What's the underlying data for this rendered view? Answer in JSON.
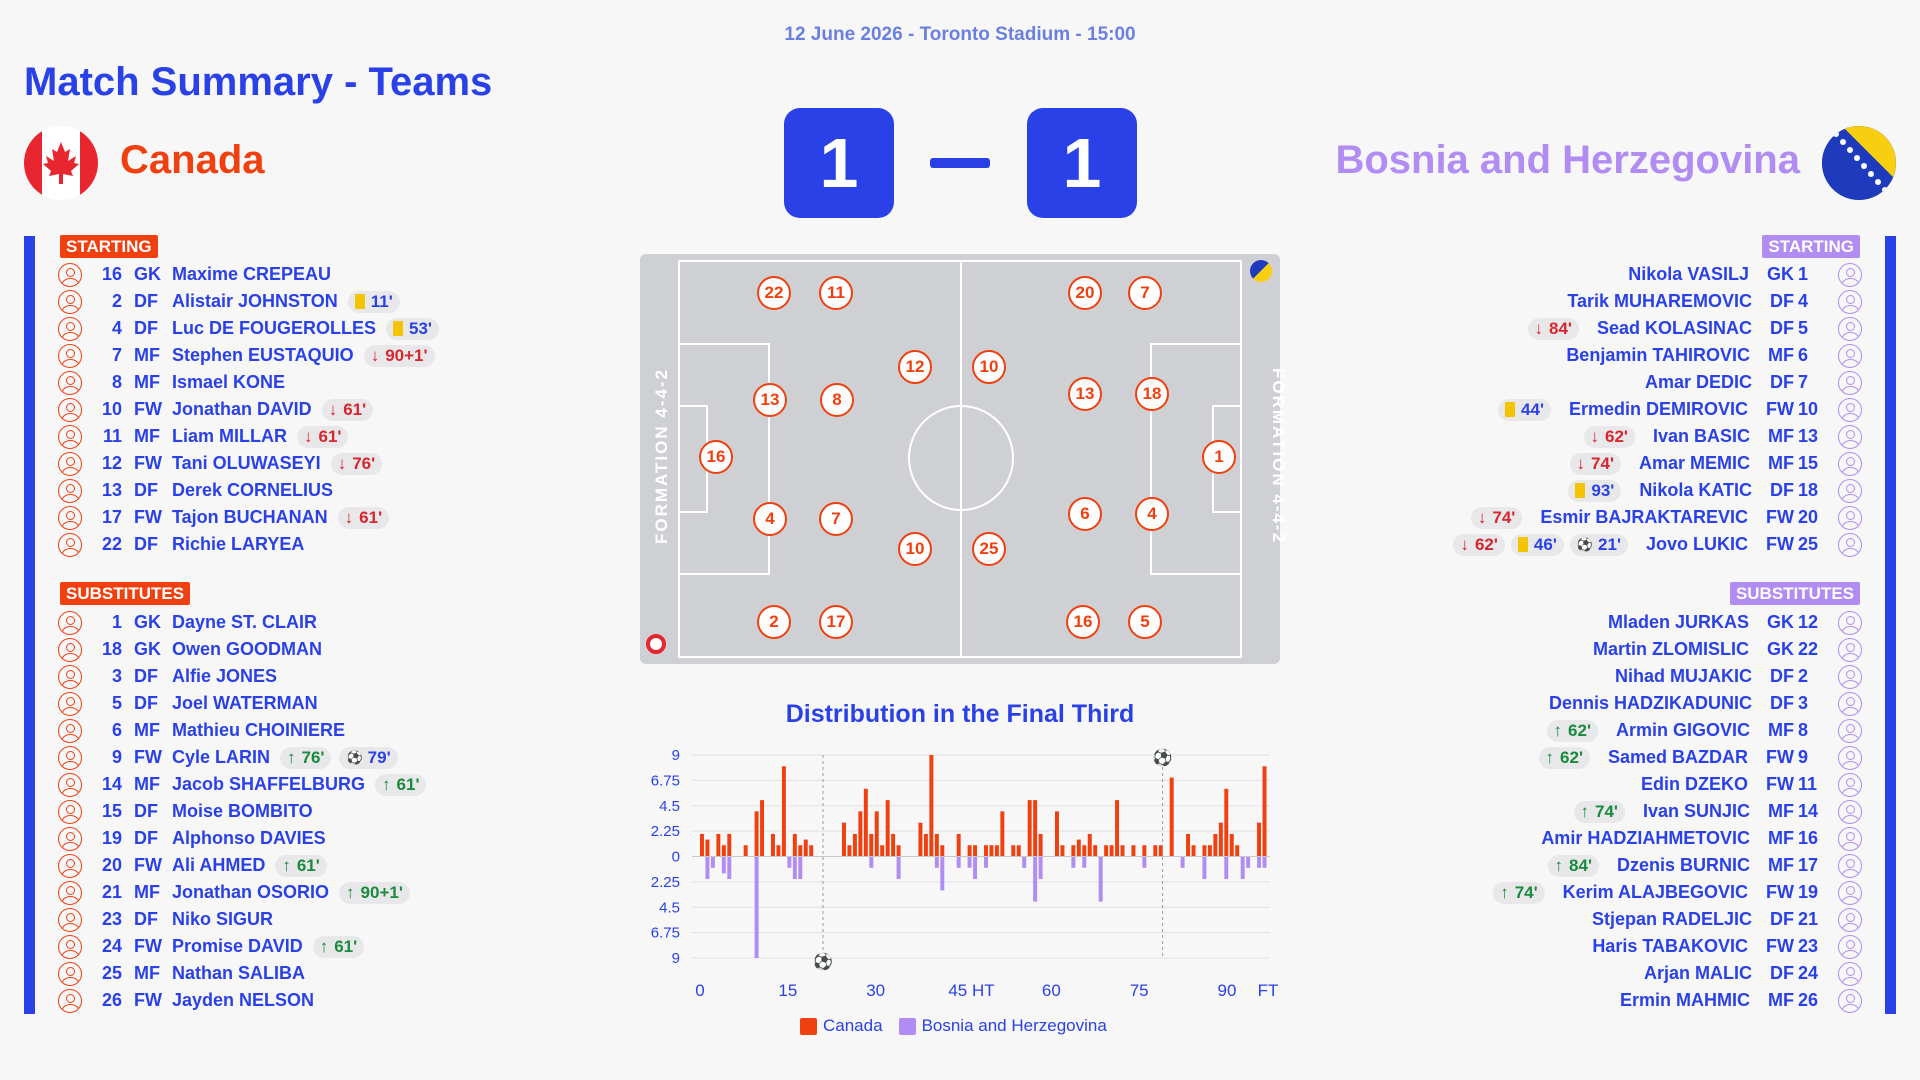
{
  "header": {
    "meta": "12 June 2026 - Toronto Stadium - 15:00",
    "title": "Match Summary - Teams"
  },
  "colors": {
    "home": "#f0400f",
    "away": "#b18cf2",
    "accent": "#2a41e8"
  },
  "home": {
    "name": "Canada",
    "flag_icon": "canada-flag-icon",
    "score": "1",
    "starting_label": "STARTING",
    "subs_label": "SUBSTITUTES",
    "formation": "FORMATION 4-4-2",
    "starting": [
      {
        "num": "16",
        "pos": "GK",
        "name": "Maxime CREPEAU",
        "events": []
      },
      {
        "num": "2",
        "pos": "DF",
        "name": "Alistair JOHNSTON",
        "events": [
          {
            "type": "yellow",
            "t": "11'"
          }
        ]
      },
      {
        "num": "4",
        "pos": "DF",
        "name": "Luc DE FOUGEROLLES",
        "events": [
          {
            "type": "yellow",
            "t": "53'"
          }
        ]
      },
      {
        "num": "7",
        "pos": "MF",
        "name": "Stephen EUSTAQUIO",
        "events": [
          {
            "type": "out",
            "t": "90+1'"
          }
        ]
      },
      {
        "num": "8",
        "pos": "MF",
        "name": "Ismael KONE",
        "events": []
      },
      {
        "num": "10",
        "pos": "FW",
        "name": "Jonathan DAVID",
        "events": [
          {
            "type": "out",
            "t": "61'"
          }
        ]
      },
      {
        "num": "11",
        "pos": "MF",
        "name": "Liam MILLAR",
        "events": [
          {
            "type": "out",
            "t": "61'"
          }
        ]
      },
      {
        "num": "12",
        "pos": "FW",
        "name": "Tani OLUWASEYI",
        "events": [
          {
            "type": "out",
            "t": "76'"
          }
        ]
      },
      {
        "num": "13",
        "pos": "DF",
        "name": "Derek CORNELIUS",
        "events": []
      },
      {
        "num": "17",
        "pos": "FW",
        "name": "Tajon BUCHANAN",
        "events": [
          {
            "type": "out",
            "t": "61'"
          }
        ]
      },
      {
        "num": "22",
        "pos": "DF",
        "name": "Richie LARYEA",
        "events": []
      }
    ],
    "subs": [
      {
        "num": "1",
        "pos": "GK",
        "name": "Dayne ST. CLAIR",
        "events": []
      },
      {
        "num": "18",
        "pos": "GK",
        "name": "Owen GOODMAN",
        "events": []
      },
      {
        "num": "3",
        "pos": "DF",
        "name": "Alfie JONES",
        "events": []
      },
      {
        "num": "5",
        "pos": "DF",
        "name": "Joel WATERMAN",
        "events": []
      },
      {
        "num": "6",
        "pos": "MF",
        "name": "Mathieu CHOINIERE",
        "events": []
      },
      {
        "num": "9",
        "pos": "FW",
        "name": "Cyle LARIN",
        "events": [
          {
            "type": "in",
            "t": "76'"
          },
          {
            "type": "goal",
            "t": "79'"
          }
        ]
      },
      {
        "num": "14",
        "pos": "MF",
        "name": "Jacob SHAFFELBURG",
        "events": [
          {
            "type": "in",
            "t": "61'"
          }
        ]
      },
      {
        "num": "15",
        "pos": "DF",
        "name": "Moise BOMBITO",
        "events": []
      },
      {
        "num": "19",
        "pos": "DF",
        "name": "Alphonso DAVIES",
        "events": []
      },
      {
        "num": "20",
        "pos": "FW",
        "name": "Ali AHMED",
        "events": [
          {
            "type": "in",
            "t": "61'"
          }
        ]
      },
      {
        "num": "21",
        "pos": "MF",
        "name": "Jonathan OSORIO",
        "events": [
          {
            "type": "in",
            "t": "90+1'"
          }
        ]
      },
      {
        "num": "23",
        "pos": "DF",
        "name": "Niko SIGUR",
        "events": []
      },
      {
        "num": "24",
        "pos": "FW",
        "name": "Promise DAVID",
        "events": [
          {
            "type": "in",
            "t": "61'"
          }
        ]
      },
      {
        "num": "25",
        "pos": "MF",
        "name": "Nathan SALIBA",
        "events": []
      },
      {
        "num": "26",
        "pos": "FW",
        "name": "Jayden NELSON",
        "events": []
      }
    ],
    "pitch": [
      "22",
      "11",
      "13",
      "8",
      "16",
      "4",
      "7",
      "2",
      "17",
      "12",
      "10"
    ]
  },
  "away": {
    "name": "Bosnia and Herzegovina",
    "flag_icon": "bosnia-flag-icon",
    "score": "1",
    "starting_label": "STARTING",
    "subs_label": "SUBSTITUTES",
    "formation": "FORMATION 4-4-2",
    "starting": [
      {
        "num": "1",
        "pos": "GK",
        "name": "Nikola VASILJ",
        "events": []
      },
      {
        "num": "4",
        "pos": "DF",
        "name": "Tarik MUHAREMOVIC",
        "events": []
      },
      {
        "num": "5",
        "pos": "DF",
        "name": "Sead KOLASINAC",
        "events": [
          {
            "type": "out",
            "t": "84'"
          }
        ]
      },
      {
        "num": "6",
        "pos": "MF",
        "name": "Benjamin TAHIROVIC",
        "events": []
      },
      {
        "num": "7",
        "pos": "DF",
        "name": "Amar DEDIC",
        "events": []
      },
      {
        "num": "10",
        "pos": "FW",
        "name": "Ermedin DEMIROVIC",
        "events": [
          {
            "type": "yellow",
            "t": "44'"
          }
        ]
      },
      {
        "num": "13",
        "pos": "MF",
        "name": "Ivan BASIC",
        "events": [
          {
            "type": "out",
            "t": "62'"
          }
        ]
      },
      {
        "num": "15",
        "pos": "MF",
        "name": "Amar MEMIC",
        "events": [
          {
            "type": "out",
            "t": "74'"
          }
        ]
      },
      {
        "num": "18",
        "pos": "DF",
        "name": "Nikola KATIC",
        "events": [
          {
            "type": "yellow",
            "t": "93'"
          }
        ]
      },
      {
        "num": "20",
        "pos": "FW",
        "name": "Esmir BAJRAKTAREVIC",
        "events": [
          {
            "type": "out",
            "t": "74'"
          }
        ]
      },
      {
        "num": "25",
        "pos": "FW",
        "name": "Jovo LUKIC",
        "events": [
          {
            "type": "out",
            "t": "62'"
          },
          {
            "type": "yellow",
            "t": "46'"
          },
          {
            "type": "goal",
            "t": "21'"
          }
        ]
      }
    ],
    "subs": [
      {
        "num": "12",
        "pos": "GK",
        "name": "Mladen JURKAS",
        "events": []
      },
      {
        "num": "22",
        "pos": "GK",
        "name": "Martin ZLOMISLIC",
        "events": []
      },
      {
        "num": "2",
        "pos": "DF",
        "name": "Nihad MUJAKIC",
        "events": []
      },
      {
        "num": "3",
        "pos": "DF",
        "name": "Dennis HADZIKADUNIC",
        "events": []
      },
      {
        "num": "8",
        "pos": "MF",
        "name": "Armin GIGOVIC",
        "events": [
          {
            "type": "in",
            "t": "62'"
          }
        ]
      },
      {
        "num": "9",
        "pos": "FW",
        "name": "Samed BAZDAR",
        "events": [
          {
            "type": "in",
            "t": "62'"
          }
        ]
      },
      {
        "num": "11",
        "pos": "FW",
        "name": "Edin DZEKO",
        "events": []
      },
      {
        "num": "14",
        "pos": "MF",
        "name": "Ivan SUNJIC",
        "events": [
          {
            "type": "in",
            "t": "74'"
          }
        ]
      },
      {
        "num": "16",
        "pos": "MF",
        "name": "Amir HADZIAHMETOVIC",
        "events": []
      },
      {
        "num": "17",
        "pos": "MF",
        "name": "Dzenis BURNIC",
        "events": [
          {
            "type": "in",
            "t": "84'"
          }
        ]
      },
      {
        "num": "19",
        "pos": "FW",
        "name": "Kerim ALAJBEGOVIC",
        "events": [
          {
            "type": "in",
            "t": "74'"
          }
        ]
      },
      {
        "num": "21",
        "pos": "DF",
        "name": "Stjepan RADELJIC",
        "events": []
      },
      {
        "num": "23",
        "pos": "FW",
        "name": "Haris TABAKOVIC",
        "events": []
      },
      {
        "num": "24",
        "pos": "DF",
        "name": "Arjan MALIC",
        "events": []
      },
      {
        "num": "26",
        "pos": "MF",
        "name": "Ermin MAHMIC",
        "events": []
      }
    ],
    "pitch": [
      "20",
      "7",
      "13",
      "18",
      "1",
      "6",
      "4",
      "16",
      "5",
      "10",
      "25"
    ]
  },
  "chart_data": {
    "type": "bar",
    "title": "Distribution in the Final Third",
    "x_ticks": [
      "0",
      "15",
      "30",
      "45 HT",
      "60",
      "75",
      "90",
      "FT"
    ],
    "y_ticks": [
      "9",
      "6.75",
      "4.5",
      "2.25",
      "0",
      "2.25",
      "4.5",
      "6.75",
      "9"
    ],
    "ylim": [
      -9,
      9
    ],
    "series": [
      {
        "name": "Canada",
        "color": "#f0400f",
        "values": [
          2,
          1.5,
          0,
          2,
          1,
          2,
          0,
          0,
          1,
          0,
          4,
          5,
          0,
          2,
          1,
          8,
          0,
          2,
          1,
          1.5,
          1,
          0,
          0,
          0,
          0,
          0,
          3,
          1,
          2,
          4,
          6,
          2,
          4,
          1,
          5,
          2,
          1,
          0,
          0,
          0,
          3,
          2,
          9,
          2,
          1,
          0,
          0,
          2,
          0,
          1,
          1,
          0,
          1,
          1,
          1,
          4,
          0,
          1,
          1,
          0,
          5,
          5,
          2,
          0,
          0,
          4,
          1,
          0,
          1,
          1.5,
          1,
          2,
          1,
          0,
          1,
          1,
          5,
          1,
          0,
          1,
          0,
          1,
          0,
          1,
          1,
          0,
          7,
          0,
          0,
          2,
          1,
          0,
          1,
          1,
          2,
          3,
          6,
          2,
          1,
          0,
          0,
          0,
          3,
          8
        ]
      },
      {
        "name": "Bosnia and Herzegovina",
        "color": "#b18cf2",
        "values": [
          0,
          2,
          1,
          0,
          1.5,
          2,
          0,
          0,
          0,
          0,
          9,
          0,
          0,
          0,
          0,
          0,
          1,
          2,
          2,
          0,
          0,
          0,
          0,
          0,
          0,
          0,
          0,
          0,
          0,
          0,
          0,
          1,
          0,
          0,
          0,
          0,
          2,
          0,
          0,
          0,
          0,
          0,
          0,
          1,
          3,
          0,
          0,
          1,
          0,
          1,
          2,
          0,
          1,
          0,
          0,
          0,
          0,
          0,
          0,
          1,
          0,
          4,
          2,
          0,
          0,
          0,
          0,
          0,
          1,
          0,
          1,
          0,
          0,
          4,
          0,
          0,
          0,
          0,
          0,
          0,
          0,
          1,
          0,
          0,
          0,
          0,
          0,
          0,
          1,
          0,
          0,
          0,
          2,
          0,
          0,
          0,
          2,
          0,
          0,
          2,
          1,
          0,
          1,
          1,
          0
        ]
      }
    ],
    "goals": [
      {
        "team": "home",
        "minute": 79
      },
      {
        "team": "away",
        "minute": 21
      }
    ],
    "legend": [
      "Canada",
      "Bosnia and Herzegovina"
    ]
  }
}
